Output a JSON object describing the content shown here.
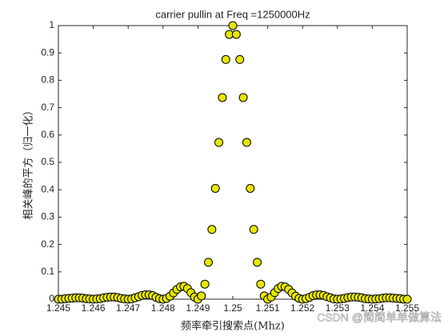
{
  "chart_data": {
    "type": "scatter",
    "title": "carrier pullin at   Freq =1250000Hz",
    "xlabel": "频率牵引搜索点(Mhz)",
    "ylabel": "相关峰的平方（归一化）",
    "watermark": "CSDN @简简单单做算法",
    "color": "#e6e600",
    "x": [
      1.245,
      1.2451,
      1.2452,
      1.2453,
      1.2454,
      1.2455,
      1.2456,
      1.2457,
      1.2458,
      1.2459,
      1.246,
      1.2461,
      1.2462,
      1.2463,
      1.2464,
      1.2465,
      1.2466,
      1.2467,
      1.2468,
      1.2469,
      1.247,
      1.2471,
      1.2472,
      1.2473,
      1.2474,
      1.2475,
      1.2476,
      1.2477,
      1.2478,
      1.2479,
      1.248,
      1.2481,
      1.2482,
      1.2483,
      1.2484,
      1.2485,
      1.2486,
      1.2487,
      1.2488,
      1.2489,
      1.249,
      1.2491,
      1.2492,
      1.2493,
      1.2494,
      1.2495,
      1.2496,
      1.2497,
      1.2498,
      1.2499,
      1.25,
      1.2501,
      1.2502,
      1.2503,
      1.2504,
      1.2505,
      1.2506,
      1.2507,
      1.2508,
      1.2509,
      1.251,
      1.2511,
      1.2512,
      1.2513,
      1.2514,
      1.2515,
      1.2516,
      1.2517,
      1.2518,
      1.2519,
      1.252,
      1.2521,
      1.2522,
      1.2523,
      1.2524,
      1.2525,
      1.2526,
      1.2527,
      1.2528,
      1.2529,
      1.253,
      1.2531,
      1.2532,
      1.2533,
      1.2534,
      1.2535,
      1.2536,
      1.2537,
      1.2538,
      1.2539,
      1.254,
      1.2541,
      1.2542,
      1.2543,
      1.2544,
      1.2545,
      1.2546,
      1.2547,
      1.2548,
      1.2549,
      1.255
    ],
    "values": [
      0,
      0,
      0.002,
      0.003,
      0.004,
      0.005,
      0.005,
      0.004,
      0.002,
      0.001,
      0,
      0.001,
      0.002,
      0.005,
      0.007,
      0.008,
      0.008,
      0.006,
      0.003,
      0.001,
      0,
      0.001,
      0.005,
      0.009,
      0.014,
      0.016,
      0.016,
      0.013,
      0.007,
      0.002,
      0,
      0.003,
      0.011,
      0.023,
      0.036,
      0.045,
      0.047,
      0.039,
      0.024,
      0.008,
      0,
      0.012,
      0.055,
      0.135,
      0.255,
      0.405,
      0.573,
      0.737,
      0.876,
      0.968,
      1,
      0.968,
      0.876,
      0.737,
      0.573,
      0.405,
      0.255,
      0.135,
      0.055,
      0.012,
      0,
      0.008,
      0.024,
      0.039,
      0.047,
      0.045,
      0.036,
      0.023,
      0.011,
      0.003,
      0,
      0.002,
      0.007,
      0.013,
      0.016,
      0.016,
      0.014,
      0.009,
      0.005,
      0.001,
      0,
      0.001,
      0.003,
      0.006,
      0.008,
      0.008,
      0.007,
      0.005,
      0.002,
      0.001,
      0,
      0.001,
      0.002,
      0.004,
      0.005,
      0.005,
      0.004,
      0.003,
      0.002,
      0,
      0
    ],
    "xlim": [
      1.245,
      1.255
    ],
    "xticks": [
      1.245,
      1.246,
      1.247,
      1.248,
      1.249,
      1.25,
      1.251,
      1.252,
      1.253,
      1.254,
      1.255
    ],
    "ylim": [
      0,
      1
    ],
    "yticks": [
      0,
      0.1,
      0.2,
      0.3,
      0.4,
      0.5,
      0.6,
      0.7,
      0.8,
      0.9,
      1
    ],
    "grid": false
  }
}
